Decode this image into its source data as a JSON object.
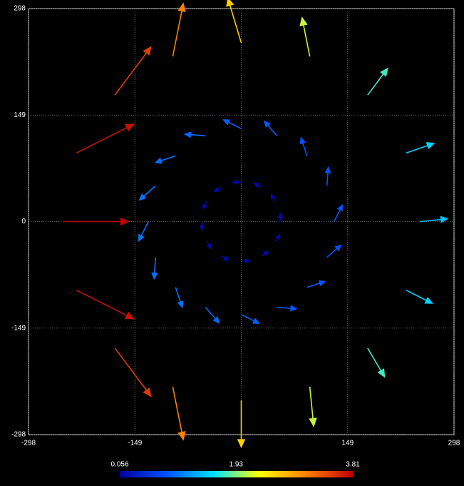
{
  "chart_data": {
    "type": "quiver",
    "x": [
      250,
      231,
      177,
      96,
      0,
      -96,
      -177,
      -231,
      -250,
      -231,
      -177,
      -96,
      0,
      96,
      177,
      231,
      130,
      120,
      92,
      50,
      0,
      -50,
      -92,
      -120,
      -130,
      -120,
      -92,
      -50,
      0,
      50,
      92,
      120,
      55,
      48,
      28,
      0,
      -28,
      -48,
      -55,
      -48,
      -28,
      0,
      28,
      48
    ],
    "y": [
      0,
      96,
      177,
      231,
      250,
      231,
      177,
      96,
      0,
      -96,
      -177,
      -231,
      -250,
      -231,
      -177,
      -96,
      0,
      50,
      92,
      120,
      130,
      120,
      92,
      50,
      0,
      -50,
      -92,
      -120,
      -130,
      -120,
      -92,
      -50,
      0,
      28,
      48,
      55,
      48,
      28,
      0,
      -28,
      -48,
      -55,
      -48,
      -28
    ],
    "u": [
      1.39,
      1.41,
      1.05,
      -0.42,
      -0.75,
      0.6,
      2.07,
      3.32,
      3.8,
      3.32,
      2.07,
      0.6,
      0,
      0.21,
      0.89,
      1.33,
      0.36,
      0.06,
      -0.26,
      -0.56,
      -0.8,
      -0.94,
      -0.92,
      -0.75,
      -0.45,
      -0.07,
      0.31,
      0.62,
      0.8,
      0.86,
      0.79,
      0.61,
      0,
      -0.08,
      -0.13,
      -0.15,
      -0.13,
      -0.08,
      0,
      0.08,
      0.13,
      0.15,
      0.13,
      0.08
    ],
    "v": [
      0.14,
      0.49,
      1.4,
      2.1,
      2.49,
      3.0,
      2.76,
      1.66,
      0,
      -1.66,
      -2.76,
      -3.0,
      -2.6,
      -2.13,
      -1.51,
      -0.67,
      0.72,
      0.81,
      0.79,
      0.65,
      0.4,
      0.07,
      -0.31,
      -0.65,
      -0.89,
      -0.99,
      -0.92,
      -0.71,
      -0.4,
      -0.06,
      0.26,
      0.53,
      0.15,
      0.13,
      0.08,
      0,
      -0.08,
      -0.13,
      -0.15,
      -0.13,
      -0.08,
      0,
      0.08,
      0.13
    ],
    "xlim": [
      -298,
      298
    ],
    "ylim": [
      -298,
      298
    ],
    "xticks": [
      -298,
      -149,
      0,
      149,
      298
    ],
    "yticks": [
      -298,
      -149,
      0,
      149,
      298
    ],
    "grid": true,
    "colorscale": [
      "#0000a0",
      "#0050ff",
      "#00e0ff",
      "#ffff00",
      "#ff8000",
      "#c00000"
    ],
    "colorbar": {
      "lim": [
        0.056,
        3.81
      ],
      "ticks": [
        0.056,
        1.93,
        3.81
      ]
    }
  }
}
